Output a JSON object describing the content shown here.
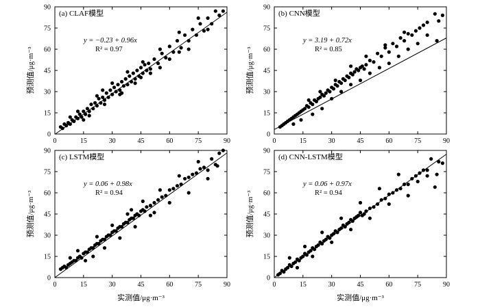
{
  "figure": {
    "xlabel": "实测值/μg·m⁻³",
    "ylabel": "预测值/μg·m⁻³",
    "axis_color": "#000000",
    "point_color": "#000000",
    "line_color": "#000000"
  },
  "chart_data": [
    {
      "type": "scatter",
      "title": "(a) CLAF模型",
      "equation": "y = −0.23 + 0.96x",
      "r2_label": "R² = 0.97",
      "xlim": [
        0,
        90
      ],
      "ylim": [
        0,
        90
      ],
      "xticks": [
        0,
        15,
        30,
        45,
        60,
        75,
        90
      ],
      "yticks": [
        0,
        15,
        30,
        45,
        60,
        75,
        90
      ],
      "xlabel": "",
      "ylabel": "预测值/μg·m⁻³",
      "fit": {
        "intercept": -0.23,
        "slope": 0.96
      },
      "points": [
        [
          3,
          5
        ],
        [
          4,
          4
        ],
        [
          5,
          7
        ],
        [
          6,
          6
        ],
        [
          7,
          8
        ],
        [
          8,
          7
        ],
        [
          9,
          10
        ],
        [
          10,
          9
        ],
        [
          11,
          12
        ],
        [
          12,
          11
        ],
        [
          13,
          14
        ],
        [
          14,
          12
        ],
        [
          15,
          16
        ],
        [
          16,
          14
        ],
        [
          17,
          18
        ],
        [
          18,
          16
        ],
        [
          19,
          21
        ],
        [
          20,
          18
        ],
        [
          21,
          22
        ],
        [
          22,
          20
        ],
        [
          23,
          25
        ],
        [
          24,
          22
        ],
        [
          25,
          26
        ],
        [
          26,
          24
        ],
        [
          27,
          29
        ],
        [
          28,
          26
        ],
        [
          29,
          31
        ],
        [
          30,
          28
        ],
        [
          31,
          33
        ],
        [
          32,
          30
        ],
        [
          33,
          35
        ],
        [
          34,
          31
        ],
        [
          35,
          37
        ],
        [
          36,
          34
        ],
        [
          37,
          39
        ],
        [
          38,
          35
        ],
        [
          39,
          41
        ],
        [
          40,
          37
        ],
        [
          41,
          43
        ],
        [
          42,
          39
        ],
        [
          43,
          45
        ],
        [
          44,
          41
        ],
        [
          45,
          47
        ],
        [
          46,
          43
        ],
        [
          47,
          49
        ],
        [
          48,
          45
        ],
        [
          49,
          50
        ],
        [
          50,
          46
        ],
        [
          52,
          53
        ],
        [
          54,
          50
        ],
        [
          56,
          57
        ],
        [
          58,
          54
        ],
        [
          60,
          62
        ],
        [
          62,
          58
        ],
        [
          64,
          66
        ],
        [
          66,
          61
        ],
        [
          68,
          70
        ],
        [
          70,
          66
        ],
        [
          72,
          74
        ],
        [
          74,
          70
        ],
        [
          76,
          78
        ],
        [
          78,
          73
        ],
        [
          80,
          82
        ],
        [
          82,
          78
        ],
        [
          84,
          87
        ],
        [
          86,
          84
        ],
        [
          88,
          87
        ],
        [
          8,
          12
        ],
        [
          12,
          16
        ],
        [
          18,
          13
        ],
        [
          22,
          27
        ],
        [
          26,
          21
        ],
        [
          30,
          36
        ],
        [
          34,
          28
        ],
        [
          38,
          44
        ],
        [
          42,
          36
        ],
        [
          46,
          51
        ],
        [
          50,
          43
        ],
        [
          55,
          60
        ],
        [
          60,
          53
        ],
        [
          65,
          72
        ],
        [
          70,
          60
        ],
        [
          75,
          82
        ],
        [
          80,
          74
        ],
        [
          15,
          10
        ],
        [
          25,
          31
        ],
        [
          35,
          29
        ],
        [
          45,
          40
        ],
        [
          55,
          47
        ],
        [
          65,
          58
        ]
      ]
    },
    {
      "type": "scatter",
      "title": "(b) CNN模型",
      "equation": "y = 3.19 + 0.72x",
      "r2_label": "R² = 0.85",
      "xlim": [
        0,
        90
      ],
      "ylim": [
        0,
        90
      ],
      "xticks": [
        0,
        15,
        30,
        45,
        60,
        75,
        90
      ],
      "yticks": [
        0,
        15,
        30,
        45,
        60,
        75,
        90
      ],
      "xlabel": "",
      "ylabel": "预测值/μg·m⁻³",
      "fit": {
        "intercept": 3.19,
        "slope": 0.72
      },
      "points": [
        [
          3,
          5
        ],
        [
          4,
          6
        ],
        [
          5,
          7
        ],
        [
          6,
          8
        ],
        [
          7,
          9
        ],
        [
          8,
          10
        ],
        [
          9,
          11
        ],
        [
          10,
          12
        ],
        [
          11,
          13
        ],
        [
          12,
          14
        ],
        [
          13,
          15
        ],
        [
          14,
          16
        ],
        [
          15,
          17
        ],
        [
          16,
          18
        ],
        [
          17,
          20
        ],
        [
          18,
          19
        ],
        [
          19,
          22
        ],
        [
          20,
          21
        ],
        [
          21,
          24
        ],
        [
          22,
          23
        ],
        [
          23,
          25
        ],
        [
          24,
          26
        ],
        [
          25,
          28
        ],
        [
          26,
          27
        ],
        [
          27,
          29
        ],
        [
          28,
          31
        ],
        [
          29,
          30
        ],
        [
          30,
          33
        ],
        [
          31,
          32
        ],
        [
          32,
          35
        ],
        [
          33,
          34
        ],
        [
          34,
          37
        ],
        [
          35,
          36
        ],
        [
          36,
          39
        ],
        [
          37,
          38
        ],
        [
          38,
          41
        ],
        [
          39,
          40
        ],
        [
          40,
          43
        ],
        [
          41,
          42
        ],
        [
          42,
          44
        ],
        [
          43,
          46
        ],
        [
          44,
          45
        ],
        [
          45,
          47
        ],
        [
          46,
          48
        ],
        [
          47,
          46
        ],
        [
          48,
          49
        ],
        [
          50,
          52
        ],
        [
          52,
          51
        ],
        [
          54,
          57
        ],
        [
          56,
          55
        ],
        [
          58,
          61
        ],
        [
          60,
          58
        ],
        [
          62,
          64
        ],
        [
          64,
          62
        ],
        [
          66,
          68
        ],
        [
          68,
          66
        ],
        [
          70,
          71
        ],
        [
          72,
          70
        ],
        [
          74,
          73
        ],
        [
          76,
          75
        ],
        [
          78,
          77
        ],
        [
          80,
          79
        ],
        [
          84,
          85
        ],
        [
          86,
          80
        ],
        [
          88,
          84
        ],
        [
          10,
          7
        ],
        [
          14,
          10
        ],
        [
          20,
          14
        ],
        [
          25,
          18
        ],
        [
          30,
          25
        ],
        [
          35,
          30
        ],
        [
          40,
          35
        ],
        [
          45,
          38
        ],
        [
          50,
          43
        ],
        [
          55,
          47
        ],
        [
          60,
          50
        ],
        [
          65,
          55
        ],
        [
          70,
          60
        ],
        [
          75,
          64
        ],
        [
          80,
          70
        ],
        [
          85,
          66
        ],
        [
          18,
          24
        ],
        [
          24,
          30
        ],
        [
          32,
          38
        ],
        [
          40,
          48
        ],
        [
          48,
          55
        ],
        [
          58,
          63
        ],
        [
          68,
          72
        ]
      ]
    },
    {
      "type": "scatter",
      "title": "(c) LSTM模型",
      "equation": "y = 0.06 + 0.98x",
      "r2_label": "R² = 0.94",
      "xlim": [
        0,
        90
      ],
      "ylim": [
        0,
        90
      ],
      "xticks": [
        0,
        15,
        30,
        45,
        60,
        75,
        90
      ],
      "yticks": [
        0,
        15,
        30,
        45,
        60,
        75,
        90
      ],
      "xlabel": "实测值/μg·m⁻³",
      "ylabel": "预测值/μg·m⁻³",
      "fit": {
        "intercept": 0.06,
        "slope": 0.98
      },
      "points": [
        [
          3,
          6
        ],
        [
          4,
          7
        ],
        [
          5,
          8
        ],
        [
          6,
          7
        ],
        [
          7,
          9
        ],
        [
          8,
          10
        ],
        [
          9,
          11
        ],
        [
          10,
          12
        ],
        [
          11,
          12
        ],
        [
          12,
          14
        ],
        [
          13,
          15
        ],
        [
          14,
          14
        ],
        [
          15,
          17
        ],
        [
          16,
          18
        ],
        [
          17,
          18
        ],
        [
          18,
          20
        ],
        [
          19,
          21
        ],
        [
          20,
          21
        ],
        [
          21,
          23
        ],
        [
          22,
          24
        ],
        [
          23,
          24
        ],
        [
          24,
          26
        ],
        [
          25,
          27
        ],
        [
          26,
          27
        ],
        [
          27,
          29
        ],
        [
          28,
          30
        ],
        [
          29,
          30
        ],
        [
          30,
          32
        ],
        [
          31,
          33
        ],
        [
          32,
          33
        ],
        [
          33,
          35
        ],
        [
          34,
          36
        ],
        [
          35,
          36
        ],
        [
          36,
          38
        ],
        [
          37,
          39
        ],
        [
          38,
          39
        ],
        [
          39,
          41
        ],
        [
          40,
          42
        ],
        [
          41,
          42
        ],
        [
          42,
          44
        ],
        [
          43,
          45
        ],
        [
          44,
          44
        ],
        [
          45,
          47
        ],
        [
          46,
          48
        ],
        [
          47,
          47
        ],
        [
          48,
          50
        ],
        [
          50,
          51
        ],
        [
          52,
          53
        ],
        [
          54,
          55
        ],
        [
          56,
          57
        ],
        [
          58,
          58
        ],
        [
          60,
          62
        ],
        [
          62,
          63
        ],
        [
          64,
          65
        ],
        [
          66,
          66
        ],
        [
          68,
          70
        ],
        [
          70,
          71
        ],
        [
          72,
          73
        ],
        [
          74,
          74
        ],
        [
          76,
          77
        ],
        [
          78,
          78
        ],
        [
          80,
          76
        ],
        [
          82,
          84
        ],
        [
          84,
          80
        ],
        [
          86,
          88
        ],
        [
          88,
          90
        ],
        [
          8,
          14
        ],
        [
          12,
          19
        ],
        [
          16,
          12
        ],
        [
          22,
          29
        ],
        [
          26,
          21
        ],
        [
          30,
          37
        ],
        [
          34,
          28
        ],
        [
          38,
          45
        ],
        [
          42,
          36
        ],
        [
          46,
          54
        ],
        [
          50,
          44
        ],
        [
          55,
          62
        ],
        [
          60,
          53
        ],
        [
          65,
          72
        ],
        [
          70,
          60
        ],
        [
          75,
          82
        ],
        [
          80,
          70
        ],
        [
          85,
          79
        ],
        [
          20,
          15
        ],
        [
          40,
          48
        ],
        [
          52,
          46
        ]
      ]
    },
    {
      "type": "scatter",
      "title": "(d) CNN-LSTM模型",
      "equation": "y = 0.06 + 0.97x",
      "r2_label": "R² = 0.94",
      "xlim": [
        0,
        90
      ],
      "ylim": [
        0,
        90
      ],
      "xticks": [
        0,
        15,
        30,
        45,
        60,
        75,
        90
      ],
      "yticks": [
        0,
        15,
        30,
        45,
        60,
        75,
        90
      ],
      "xlabel": "实测值/μg·m⁻³",
      "ylabel": "预测值/μg·m⁻³",
      "fit": {
        "intercept": 0.06,
        "slope": 0.97
      },
      "points": [
        [
          2,
          2
        ],
        [
          3,
          3
        ],
        [
          4,
          5
        ],
        [
          5,
          4
        ],
        [
          6,
          6
        ],
        [
          7,
          7
        ],
        [
          8,
          9
        ],
        [
          9,
          8
        ],
        [
          10,
          10
        ],
        [
          11,
          11
        ],
        [
          12,
          13
        ],
        [
          13,
          12
        ],
        [
          14,
          14
        ],
        [
          15,
          15
        ],
        [
          16,
          17
        ],
        [
          17,
          16
        ],
        [
          18,
          18
        ],
        [
          19,
          19
        ],
        [
          20,
          21
        ],
        [
          21,
          20
        ],
        [
          22,
          22
        ],
        [
          23,
          23
        ],
        [
          24,
          25
        ],
        [
          25,
          24
        ],
        [
          26,
          26
        ],
        [
          27,
          27
        ],
        [
          28,
          29
        ],
        [
          29,
          28
        ],
        [
          30,
          30
        ],
        [
          31,
          31
        ],
        [
          32,
          33
        ],
        [
          33,
          32
        ],
        [
          34,
          34
        ],
        [
          35,
          35
        ],
        [
          36,
          37
        ],
        [
          37,
          36
        ],
        [
          38,
          38
        ],
        [
          39,
          39
        ],
        [
          40,
          41
        ],
        [
          41,
          40
        ],
        [
          42,
          42
        ],
        [
          43,
          43
        ],
        [
          44,
          44
        ],
        [
          45,
          46
        ],
        [
          46,
          44
        ],
        [
          47,
          45
        ],
        [
          48,
          47
        ],
        [
          50,
          49
        ],
        [
          52,
          50
        ],
        [
          54,
          52
        ],
        [
          56,
          55
        ],
        [
          58,
          56
        ],
        [
          60,
          59
        ],
        [
          62,
          60
        ],
        [
          64,
          62
        ],
        [
          66,
          63
        ],
        [
          68,
          66
        ],
        [
          70,
          66
        ],
        [
          72,
          70
        ],
        [
          74,
          72
        ],
        [
          76,
          74
        ],
        [
          78,
          76
        ],
        [
          80,
          72
        ],
        [
          82,
          84
        ],
        [
          84,
          64
        ],
        [
          86,
          82
        ],
        [
          88,
          81
        ],
        [
          8,
          14
        ],
        [
          12,
          7
        ],
        [
          16,
          22
        ],
        [
          20,
          15
        ],
        [
          25,
          32
        ],
        [
          30,
          25
        ],
        [
          35,
          42
        ],
        [
          40,
          34
        ],
        [
          45,
          53
        ],
        [
          50,
          42
        ],
        [
          55,
          63
        ],
        [
          60,
          52
        ],
        [
          65,
          73
        ],
        [
          70,
          58
        ],
        [
          75,
          68
        ],
        [
          80,
          76
        ],
        [
          85,
          73
        ]
      ]
    }
  ]
}
